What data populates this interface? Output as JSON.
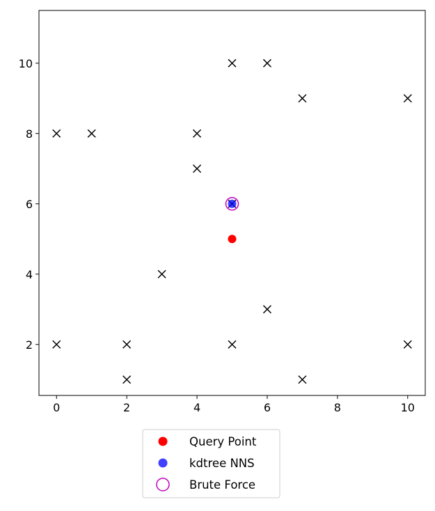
{
  "chart_data": {
    "type": "scatter",
    "title": "",
    "xlabel": "",
    "ylabel": "",
    "xlim": [
      -0.5,
      10.5
    ],
    "ylim": [
      0.55,
      11.5
    ],
    "xticks": [
      "0",
      "2",
      "4",
      "6",
      "8",
      "10"
    ],
    "yticks": [
      "2",
      "4",
      "6",
      "8",
      "10"
    ],
    "grid": false,
    "legend_position": "below",
    "points": [
      {
        "x": 0,
        "y": 8
      },
      {
        "x": 1,
        "y": 8
      },
      {
        "x": 4,
        "y": 8
      },
      {
        "x": 4,
        "y": 7
      },
      {
        "x": 5,
        "y": 10
      },
      {
        "x": 6,
        "y": 10
      },
      {
        "x": 7,
        "y": 9
      },
      {
        "x": 10,
        "y": 9
      },
      {
        "x": 5,
        "y": 6
      },
      {
        "x": 3,
        "y": 4
      },
      {
        "x": 6,
        "y": 3
      },
      {
        "x": 0,
        "y": 2
      },
      {
        "x": 2,
        "y": 2
      },
      {
        "x": 5,
        "y": 2
      },
      {
        "x": 10,
        "y": 2
      },
      {
        "x": 2,
        "y": 1
      },
      {
        "x": 7,
        "y": 1
      }
    ],
    "query_point": {
      "x": 5,
      "y": 5
    },
    "kdtree_nns": {
      "x": 5,
      "y": 6
    },
    "brute_force": {
      "x": 5,
      "y": 6
    },
    "legend": [
      {
        "label": "Query Point",
        "color": "#ff0000",
        "marker": "filled-circle"
      },
      {
        "label": "kdtree NNS",
        "color": "#0000ff",
        "marker": "filled-circle"
      },
      {
        "label": "Brute Force",
        "color": "#bf00bf",
        "marker": "hollow-circle"
      }
    ],
    "point_color": "#000000",
    "point_marker": "x"
  }
}
